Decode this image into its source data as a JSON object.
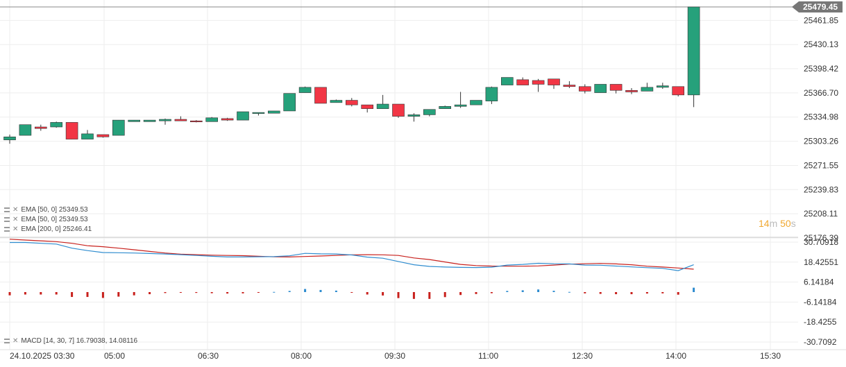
{
  "chart_data": [
    {
      "type": "candlestick",
      "x_labels": [
        "24.10.2025  03:30",
        "05:00",
        "06:30",
        "08:00",
        "09:30",
        "11:00",
        "12:30",
        "14:00",
        "15:30"
      ],
      "y_ticks": [
        "25461.85",
        "25430.13",
        "25398.42",
        "25366.70",
        "25334.98",
        "25303.26",
        "25271.55",
        "25239.83",
        "25208.11",
        "25176.39"
      ],
      "ylim": [
        25176.39,
        25479.45
      ],
      "last_price": "25479.45",
      "colors": {
        "up": "#26a17b",
        "down": "#f23645",
        "wick": "#333333",
        "price_line": "#888888",
        "price_badge": "#777777"
      },
      "candles": [
        [
          25305,
          25312,
          25300,
          25309
        ],
        [
          25311,
          25325,
          25311,
          25325
        ],
        [
          25322,
          25325,
          25317,
          25320
        ],
        [
          25322,
          25329,
          25321,
          25328
        ],
        [
          25328,
          25328,
          25306,
          25306
        ],
        [
          25306,
          25318,
          25306,
          25313
        ],
        [
          25312,
          25312,
          25308,
          25309
        ],
        [
          25311,
          25331,
          25311,
          25331
        ],
        [
          25329,
          25331,
          25329,
          25331
        ],
        [
          25329,
          25331,
          25329,
          25331
        ],
        [
          25330,
          25333,
          25325,
          25332
        ],
        [
          25332,
          25336,
          25330,
          25330
        ],
        [
          25330,
          25331,
          25328,
          25329
        ],
        [
          25329,
          25335,
          25329,
          25334
        ],
        [
          25333,
          25334,
          25330,
          25331
        ],
        [
          25331,
          25342,
          25331,
          25342
        ],
        [
          25340,
          25341,
          25337,
          25341
        ],
        [
          25340,
          25343,
          25340,
          25343
        ],
        [
          25343,
          25366,
          25343,
          25366
        ],
        [
          25367,
          25375,
          25367,
          25374
        ],
        [
          25374,
          25374,
          25353,
          25353
        ],
        [
          25354,
          25358,
          25354,
          25357
        ],
        [
          25357,
          25360,
          25349,
          25351
        ],
        [
          25351,
          25351,
          25341,
          25346
        ],
        [
          25346,
          25364,
          25346,
          25352
        ],
        [
          25352,
          25352,
          25334,
          25336
        ],
        [
          25336,
          25340,
          25329,
          25338
        ],
        [
          25338,
          25345,
          25336,
          25345
        ],
        [
          25346,
          25350,
          25346,
          25349
        ],
        [
          25349,
          25368,
          25347,
          25351
        ],
        [
          25351,
          25356,
          25351,
          25357
        ],
        [
          25356,
          25375,
          25352,
          25374
        ],
        [
          25377,
          25387,
          25377,
          25387
        ],
        [
          25384,
          25387,
          25377,
          25377
        ],
        [
          25383,
          25385,
          25368,
          25378
        ],
        [
          25385,
          25385,
          25372,
          25377
        ],
        [
          25377,
          25382,
          25373,
          25375
        ],
        [
          25375,
          25378,
          25366,
          25369
        ],
        [
          25367,
          25378,
          25367,
          25378
        ],
        [
          25378,
          25378,
          25366,
          25370
        ],
        [
          25370,
          25373,
          25365,
          25368
        ],
        [
          25369,
          25380,
          25369,
          25374
        ],
        [
          25374,
          25380,
          25372,
          25376
        ],
        [
          25375,
          25375,
          25362,
          25364
        ],
        [
          25364,
          25479.45,
          25348,
          25479.45
        ]
      ]
    },
    {
      "type": "macd",
      "y_ticks": [
        "30.70918",
        "18.42551",
        "6.14184",
        "-6.14184",
        "-18.4255",
        "-30.7092"
      ],
      "ylim": [
        -30.7092,
        30.70918
      ],
      "colors": {
        "macd_line": "#2e8ccf",
        "signal_line": "#c8201c",
        "hist_pos": "#2e8ccf",
        "hist_neg": "#c8201c"
      },
      "macd": [
        30.5,
        30.5,
        30.0,
        29.5,
        27.0,
        25.5,
        24.3,
        24.2,
        24.0,
        23.7,
        23.4,
        23.0,
        22.5,
        22.0,
        21.6,
        21.6,
        21.7,
        21.8,
        22.3,
        23.8,
        23.5,
        23.4,
        22.8,
        21.5,
        20.8,
        18.8,
        16.8,
        15.8,
        15.4,
        15.2,
        15.1,
        15.3,
        16.6,
        17.0,
        17.7,
        17.4,
        17.3,
        16.6,
        16.5,
        16.0,
        15.5,
        15.0,
        14.6,
        13.2,
        16.79038
      ],
      "signal": [
        32.5,
        32.0,
        31.5,
        31.0,
        30.0,
        28.5,
        27.9,
        27.0,
        26.0,
        25.0,
        24.0,
        23.3,
        23.0,
        22.7,
        22.5,
        22.4,
        22.0,
        21.7,
        21.6,
        21.9,
        22.2,
        22.5,
        22.9,
        23.0,
        22.9,
        22.5,
        21.0,
        20.0,
        18.5,
        17.0,
        16.3,
        16.0,
        15.9,
        15.9,
        16.1,
        16.6,
        17.2,
        17.4,
        17.6,
        17.3,
        16.8,
        15.9,
        15.4,
        14.8,
        14.08116
      ],
      "histogram": [
        -2.0,
        -1.5,
        -1.5,
        -1.5,
        -3.0,
        -3.0,
        -3.6,
        -2.8,
        -2.0,
        -1.3,
        -0.6,
        -0.3,
        -0.5,
        -0.7,
        -0.9,
        -0.8,
        -0.3,
        0.1,
        0.7,
        1.9,
        1.3,
        0.9,
        -0.1,
        -1.5,
        -2.1,
        -3.7,
        -4.2,
        -4.2,
        -3.1,
        -1.8,
        -1.2,
        -0.7,
        0.7,
        1.1,
        1.6,
        0.8,
        0.1,
        -0.8,
        -1.1,
        -1.3,
        -1.3,
        -0.9,
        -0.8,
        -1.6,
        2.7
      ]
    }
  ],
  "legends": {
    "ema1": "EMA [50, 0]  25349.53",
    "ema2": "EMA [50, 0]  25349.53",
    "ema3": "EMA [200, 0]  25246.41",
    "macd": "MACD [14, 30, 7]  16.79038,   14.08116"
  },
  "countdown": {
    "minutes": "14",
    "m_unit": "m",
    "seconds": "50",
    "s_unit": "s"
  }
}
